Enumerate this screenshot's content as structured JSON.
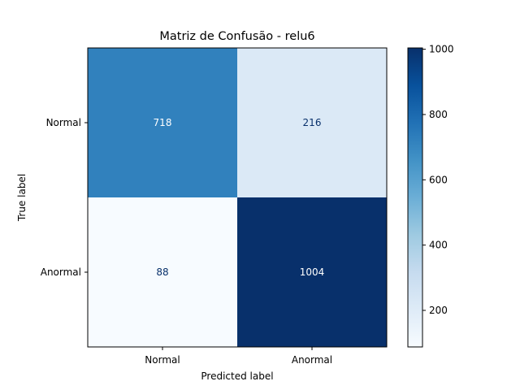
{
  "chart_data": {
    "type": "heatmap",
    "title": "Matriz de Confusão - relu6",
    "xlabel": "Predicted label",
    "ylabel": "True label",
    "x_categories": [
      "Normal",
      "Anormal"
    ],
    "y_categories": [
      "Normal",
      "Anormal"
    ],
    "matrix": [
      [
        718,
        216
      ],
      [
        88,
        1004
      ]
    ],
    "colormap": "Blues",
    "color_low": "#f7fbff",
    "color_high": "#08306b",
    "text_dark": "#08306b",
    "text_light": "#ffffff",
    "colorbar": {
      "range": [
        88,
        1004
      ],
      "ticks": [
        200,
        400,
        600,
        800,
        1000
      ],
      "tick_labels": [
        "200",
        "400",
        "600",
        "800",
        "1000"
      ]
    }
  }
}
